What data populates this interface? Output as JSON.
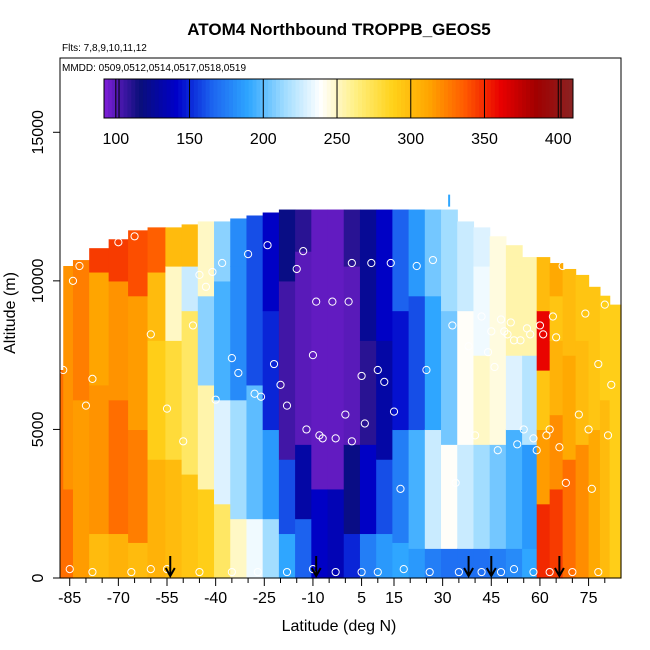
{
  "chart_data": {
    "type": "heatmap",
    "title": "ATOM4 Northbound TROPPB_GEOS5",
    "flights_label": "Flts: 7,8,9,10,11,12",
    "dates_label": "MMDD: 0509,0512,0514,0517,0518,0519",
    "xlabel": "Latitude (deg N)",
    "ylabel": "Altitude (m)",
    "xlim": [
      -88,
      85
    ],
    "ylim": [
      0,
      17500
    ],
    "x_ticks": [
      -85,
      -70,
      -55,
      -40,
      -25,
      -10,
      5,
      15,
      30,
      45,
      60,
      75
    ],
    "x_minor_ticks": [
      -80,
      -75,
      -65,
      -60,
      -50,
      -45,
      -35,
      -30,
      -20,
      -15,
      -5,
      0,
      10,
      20,
      25,
      35,
      40,
      50,
      55,
      65,
      70,
      80
    ],
    "y_ticks": [
      0,
      5000,
      10000,
      15000
    ],
    "colorbar": {
      "ticks": [
        100,
        150,
        200,
        250,
        300,
        350,
        400
      ],
      "range": [
        92,
        410
      ],
      "colors": [
        "#7f1fd8",
        "#0a0f7a",
        "#0000c8",
        "#1c64f0",
        "#2ea6ff",
        "#9fdcff",
        "#ffffff",
        "#ffef80",
        "#ffd21a",
        "#ffa500",
        "#ff5a00",
        "#e80000",
        "#a00000",
        "#8b2323"
      ]
    },
    "arrows_lat": [
      -54,
      -9,
      38,
      45,
      66
    ],
    "cyan_mark": {
      "lat": 32,
      "alt": 12700
    },
    "columns": [
      {
        "lat": -88,
        "top": 7000,
        "segs": [
          [
            0,
            7000,
            330
          ]
        ]
      },
      {
        "lat": -86,
        "top": 10500,
        "segs": [
          [
            0,
            3000,
            330
          ],
          [
            3000,
            10500,
            318
          ]
        ]
      },
      {
        "lat": -82,
        "top": 10700,
        "segs": [
          [
            0,
            6000,
            315
          ],
          [
            6000,
            10700,
            325
          ]
        ]
      },
      {
        "lat": -76,
        "top": 11100,
        "segs": [
          [
            0,
            1500,
            300
          ],
          [
            1500,
            6500,
            318
          ],
          [
            6500,
            10300,
            312
          ],
          [
            10300,
            11100,
            345
          ]
        ]
      },
      {
        "lat": -70,
        "top": 11400,
        "segs": [
          [
            0,
            1500,
            305
          ],
          [
            1500,
            6000,
            330
          ],
          [
            6000,
            10000,
            318
          ],
          [
            10000,
            11400,
            345
          ]
        ]
      },
      {
        "lat": -64,
        "top": 11700,
        "segs": [
          [
            0,
            1200,
            300
          ],
          [
            1200,
            5000,
            325
          ],
          [
            5000,
            9500,
            315
          ],
          [
            9500,
            11700,
            340
          ]
        ]
      },
      {
        "lat": -58,
        "top": 11800,
        "segs": [
          [
            0,
            4000,
            305
          ],
          [
            4000,
            8000,
            290
          ],
          [
            8000,
            10300,
            300
          ],
          [
            10300,
            11800,
            335
          ]
        ]
      },
      {
        "lat": -53,
        "top": 11800,
        "segs": [
          [
            0,
            4000,
            300
          ],
          [
            4000,
            8000,
            280
          ],
          [
            8000,
            10500,
            250
          ],
          [
            10500,
            11800,
            300
          ]
        ]
      },
      {
        "lat": -48,
        "top": 11900,
        "segs": [
          [
            0,
            3500,
            295
          ],
          [
            3500,
            9000,
            270
          ],
          [
            9000,
            10500,
            225
          ],
          [
            10500,
            11900,
            300
          ]
        ]
      },
      {
        "lat": -43,
        "top": 12000,
        "segs": [
          [
            0,
            3000,
            290
          ],
          [
            3000,
            6500,
            255
          ],
          [
            6500,
            9500,
            210
          ],
          [
            9500,
            12000,
            250
          ]
        ]
      },
      {
        "lat": -38,
        "top": 12000,
        "segs": [
          [
            0,
            2500,
            270
          ],
          [
            2500,
            6000,
            230
          ],
          [
            6000,
            10000,
            195
          ],
          [
            10000,
            12000,
            210
          ]
        ]
      },
      {
        "lat": -33,
        "top": 12100,
        "segs": [
          [
            0,
            2000,
            250
          ],
          [
            2000,
            6000,
            215
          ],
          [
            6000,
            10500,
            180
          ],
          [
            10500,
            12100,
            180
          ]
        ]
      },
      {
        "lat": -28,
        "top": 12200,
        "segs": [
          [
            0,
            2000,
            235
          ],
          [
            2000,
            6500,
            200
          ],
          [
            6500,
            11000,
            160
          ],
          [
            11000,
            12200,
            160
          ]
        ]
      },
      {
        "lat": -23,
        "top": 12300,
        "segs": [
          [
            0,
            2000,
            215
          ],
          [
            2000,
            5000,
            185
          ],
          [
            5000,
            9000,
            150
          ],
          [
            9000,
            12300,
            140
          ]
        ]
      },
      {
        "lat": -18,
        "top": 12400,
        "segs": [
          [
            0,
            1500,
            190
          ],
          [
            1500,
            4000,
            160
          ],
          [
            4000,
            10000,
            105
          ],
          [
            10000,
            12400,
            120
          ]
        ]
      },
      {
        "lat": -13,
        "top": 12400,
        "segs": [
          [
            0,
            2000,
            165
          ],
          [
            2000,
            4500,
            130
          ],
          [
            4500,
            11000,
            100
          ],
          [
            11000,
            12400,
            110
          ]
        ]
      },
      {
        "lat": -8,
        "top": 12400,
        "segs": [
          [
            0,
            3000,
            140
          ],
          [
            3000,
            12400,
            98
          ]
        ]
      },
      {
        "lat": -3,
        "top": 12400,
        "segs": [
          [
            0,
            3000,
            135
          ],
          [
            3000,
            12400,
            98
          ]
        ]
      },
      {
        "lat": 2,
        "top": 12400,
        "segs": [
          [
            0,
            1500,
            150
          ],
          [
            1500,
            4500,
            120
          ],
          [
            4500,
            10500,
            100
          ],
          [
            10500,
            12400,
            110
          ]
        ]
      },
      {
        "lat": 7,
        "top": 12400,
        "segs": [
          [
            0,
            1500,
            175
          ],
          [
            1500,
            4500,
            140
          ],
          [
            4500,
            8000,
            110
          ],
          [
            8000,
            12400,
            125
          ]
        ]
      },
      {
        "lat": 12,
        "top": 12400,
        "segs": [
          [
            0,
            1500,
            185
          ],
          [
            1500,
            4000,
            160
          ],
          [
            4000,
            8000,
            130
          ],
          [
            8000,
            12400,
            140
          ]
        ]
      },
      {
        "lat": 17,
        "top": 12400,
        "segs": [
          [
            0,
            1200,
            190
          ],
          [
            1200,
            5000,
            175
          ],
          [
            5000,
            9000,
            145
          ],
          [
            9000,
            12400,
            165
          ]
        ]
      },
      {
        "lat": 22,
        "top": 12400,
        "segs": [
          [
            0,
            1000,
            185
          ],
          [
            1000,
            5000,
            195
          ],
          [
            5000,
            9500,
            160
          ],
          [
            9500,
            12400,
            185
          ]
        ]
      },
      {
        "lat": 27,
        "top": 12400,
        "segs": [
          [
            0,
            1000,
            175
          ],
          [
            1000,
            5000,
            225
          ],
          [
            5000,
            9500,
            190
          ],
          [
            9500,
            12400,
            205
          ]
        ]
      },
      {
        "lat": 32,
        "top": 12400,
        "segs": [
          [
            0,
            1000,
            170
          ],
          [
            1000,
            4500,
            240
          ],
          [
            4500,
            9000,
            205
          ],
          [
            9000,
            12400,
            215
          ]
        ]
      },
      {
        "lat": 37,
        "top": 12000,
        "segs": [
          [
            0,
            1000,
            170
          ],
          [
            1000,
            4500,
            225
          ],
          [
            4500,
            9000,
            240
          ],
          [
            9000,
            12000,
            225
          ]
        ]
      },
      {
        "lat": 42,
        "top": 11800,
        "segs": [
          [
            0,
            1000,
            170
          ],
          [
            1000,
            4500,
            215
          ],
          [
            4500,
            7500,
            250
          ],
          [
            7500,
            10500,
            235
          ],
          [
            10500,
            11800,
            230
          ]
        ]
      },
      {
        "lat": 47,
        "top": 11500,
        "segs": [
          [
            0,
            1000,
            175
          ],
          [
            1000,
            4500,
            205
          ],
          [
            4500,
            7500,
            245
          ],
          [
            7500,
            11500,
            245
          ]
        ]
      },
      {
        "lat": 52,
        "top": 11200,
        "segs": [
          [
            0,
            1000,
            180
          ],
          [
            1000,
            5000,
            195
          ],
          [
            5000,
            7500,
            230
          ],
          [
            7500,
            10500,
            255
          ],
          [
            10500,
            11200,
            255
          ]
        ]
      },
      {
        "lat": 57,
        "top": 10800,
        "segs": [
          [
            0,
            1000,
            190
          ],
          [
            1000,
            4500,
            185
          ],
          [
            4500,
            7500,
            220
          ],
          [
            7500,
            10800,
            255
          ]
        ]
      },
      {
        "lat": 61,
        "top": 10800,
        "segs": [
          [
            0,
            2500,
            350
          ],
          [
            2500,
            5000,
            315
          ],
          [
            5000,
            7000,
            295
          ],
          [
            7000,
            9000,
            360
          ],
          [
            9000,
            10800,
            300
          ]
        ]
      },
      {
        "lat": 65,
        "top": 10600,
        "segs": [
          [
            0,
            3000,
            345
          ],
          [
            3000,
            5500,
            320
          ],
          [
            5500,
            8000,
            305
          ],
          [
            8000,
            9500,
            295
          ],
          [
            9500,
            10600,
            310
          ]
        ]
      },
      {
        "lat": 69,
        "top": 10400,
        "segs": [
          [
            0,
            4000,
            330
          ],
          [
            4000,
            7500,
            310
          ],
          [
            7500,
            10400,
            300
          ]
        ]
      },
      {
        "lat": 73,
        "top": 10200,
        "segs": [
          [
            0,
            4500,
            320
          ],
          [
            4500,
            8000,
            300
          ],
          [
            8000,
            10200,
            295
          ]
        ]
      },
      {
        "lat": 77,
        "top": 9800,
        "segs": [
          [
            0,
            5000,
            310
          ],
          [
            5000,
            9800,
            295
          ]
        ]
      },
      {
        "lat": 80,
        "top": 9500,
        "segs": [
          [
            0,
            6000,
            300
          ],
          [
            6000,
            9500,
            290
          ]
        ]
      },
      {
        "lat": 83,
        "top": 9200,
        "segs": [
          [
            0,
            9200,
            290
          ]
        ]
      }
    ],
    "points": [
      [
        -87,
        7000
      ],
      [
        -84,
        10000
      ],
      [
        -82,
        10500
      ],
      [
        -78,
        6700
      ],
      [
        -80,
        5800
      ],
      [
        -70,
        11300
      ],
      [
        -65,
        11500
      ],
      [
        -60,
        8200
      ],
      [
        -55,
        5700
      ],
      [
        -50,
        4600
      ],
      [
        -47,
        8500
      ],
      [
        -45,
        10200
      ],
      [
        -43,
        9800
      ],
      [
        -41,
        10300
      ],
      [
        -40,
        6000
      ],
      [
        -38,
        10600
      ],
      [
        -35,
        7400
      ],
      [
        -33,
        6900
      ],
      [
        -30,
        10900
      ],
      [
        -28,
        6200
      ],
      [
        -26,
        6100
      ],
      [
        -24,
        11200
      ],
      [
        -22,
        7200
      ],
      [
        -20,
        6500
      ],
      [
        -18,
        5800
      ],
      [
        -15,
        10400
      ],
      [
        -13,
        11000
      ],
      [
        -12,
        5000
      ],
      [
        -10,
        7500
      ],
      [
        -9,
        9300
      ],
      [
        -8,
        4800
      ],
      [
        -7,
        4700
      ],
      [
        -4,
        9300
      ],
      [
        -3,
        4700
      ],
      [
        0,
        5500
      ],
      [
        1,
        9300
      ],
      [
        2,
        10600
      ],
      [
        2,
        4600
      ],
      [
        5,
        6800
      ],
      [
        6,
        5200
      ],
      [
        8,
        10600
      ],
      [
        10,
        7000
      ],
      [
        12,
        6600
      ],
      [
        14,
        10600
      ],
      [
        15,
        5600
      ],
      [
        17,
        3000
      ],
      [
        22,
        10500
      ],
      [
        25,
        7000
      ],
      [
        27,
        10700
      ],
      [
        33,
        8500
      ],
      [
        34,
        3200
      ],
      [
        38,
        7800
      ],
      [
        40,
        4800
      ],
      [
        42,
        8800
      ],
      [
        44,
        7600
      ],
      [
        45,
        8300
      ],
      [
        46,
        7100
      ],
      [
        47,
        4300
      ],
      [
        48,
        8700
      ],
      [
        49,
        8300
      ],
      [
        50,
        8200
      ],
      [
        51,
        8600
      ],
      [
        52,
        8000
      ],
      [
        53,
        4500
      ],
      [
        54,
        8000
      ],
      [
        55,
        5000
      ],
      [
        56,
        8400
      ],
      [
        57,
        8200
      ],
      [
        58,
        4700
      ],
      [
        59,
        4300
      ],
      [
        60,
        8500
      ],
      [
        61,
        8200
      ],
      [
        62,
        4800
      ],
      [
        63,
        5000
      ],
      [
        64,
        8800
      ],
      [
        65,
        8100
      ],
      [
        66,
        4400
      ],
      [
        67,
        10500
      ],
      [
        68,
        3200
      ],
      [
        70,
        10700
      ],
      [
        72,
        5500
      ],
      [
        74,
        8900
      ],
      [
        75,
        5000
      ],
      [
        76,
        3000
      ],
      [
        78,
        7200
      ],
      [
        80,
        9200
      ],
      [
        81,
        4800
      ],
      [
        82,
        6500
      ],
      [
        -85,
        300
      ],
      [
        -78,
        200
      ],
      [
        -66,
        200
      ],
      [
        -60,
        300
      ],
      [
        -55,
        300
      ],
      [
        -45,
        200
      ],
      [
        -35,
        200
      ],
      [
        -27,
        200
      ],
      [
        -18,
        200
      ],
      [
        -10,
        300
      ],
      [
        -3,
        200
      ],
      [
        5,
        200
      ],
      [
        10,
        200
      ],
      [
        18,
        300
      ],
      [
        26,
        200
      ],
      [
        35,
        200
      ],
      [
        42,
        200
      ],
      [
        48,
        200
      ],
      [
        52,
        300
      ],
      [
        58,
        200
      ],
      [
        63,
        200
      ],
      [
        70,
        200
      ],
      [
        78,
        200
      ]
    ]
  }
}
